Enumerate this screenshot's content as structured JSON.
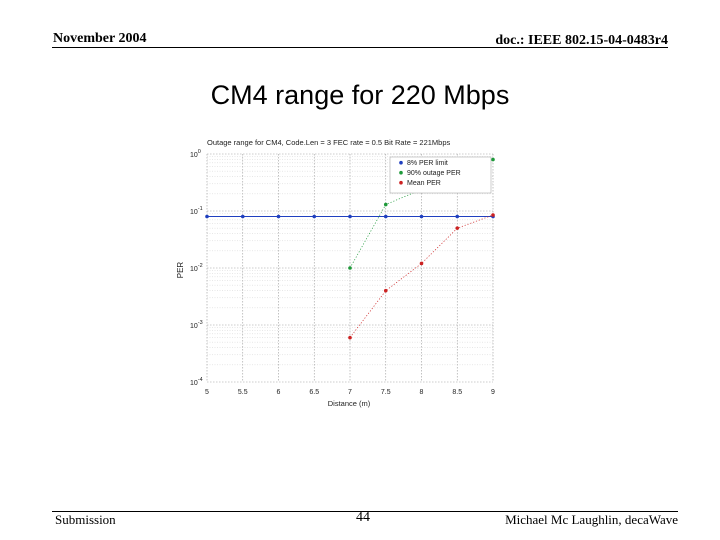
{
  "header": {
    "date": "November 2004",
    "doc_id": "doc.: IEEE 802.15-04-0483r4"
  },
  "slide": {
    "title": "CM4 range for 220 Mbps"
  },
  "footer": {
    "submission": "Submission",
    "page_number": "44",
    "author": "Michael Mc Laughlin, decaWave"
  },
  "chart_data": {
    "type": "scatter",
    "title": "Outage range for CM4, Code.Len = 3 FEC rate = 0.5 Bit Rate = 221Mbps",
    "xlabel": "Distance (m)",
    "ylabel": "PER",
    "xlim": [
      5,
      9
    ],
    "ylim": [
      0.0001,
      1
    ],
    "y_scale": "log",
    "x_ticks": [
      "5",
      "5.5",
      "6",
      "6.5",
      "7",
      "7.5",
      "8",
      "8.5",
      "9"
    ],
    "y_ticks": [
      {
        "value": 1,
        "mantissa": "10",
        "exp": "0"
      },
      {
        "value": 0.1,
        "mantissa": "10",
        "exp": "-1"
      },
      {
        "value": 0.01,
        "mantissa": "10",
        "exp": "-2"
      },
      {
        "value": 0.001,
        "mantissa": "10",
        "exp": "-3"
      },
      {
        "value": 0.0001,
        "mantissa": "10",
        "exp": "-4"
      }
    ],
    "grid": true,
    "legend_position": "top-right",
    "series": [
      {
        "name": "8% PER limit",
        "color": "#1f3fbf",
        "line": "solid",
        "x": [
          5,
          5.5,
          6,
          6.5,
          7,
          7.5,
          8,
          8.5,
          9
        ],
        "y": [
          0.08,
          0.08,
          0.08,
          0.08,
          0.08,
          0.08,
          0.08,
          0.08,
          0.08
        ]
      },
      {
        "name": "90% outage PER",
        "color": "#1e9a3a",
        "line": "dotted",
        "x": [
          7,
          7.5,
          9
        ],
        "y": [
          0.01,
          0.13,
          0.8
        ]
      },
      {
        "name": "Mean PER",
        "color": "#cc2222",
        "line": "dotted",
        "x": [
          7,
          7.5,
          8,
          8.5,
          9
        ],
        "y": [
          0.0006,
          0.004,
          0.012,
          0.05,
          0.085
        ]
      }
    ]
  }
}
